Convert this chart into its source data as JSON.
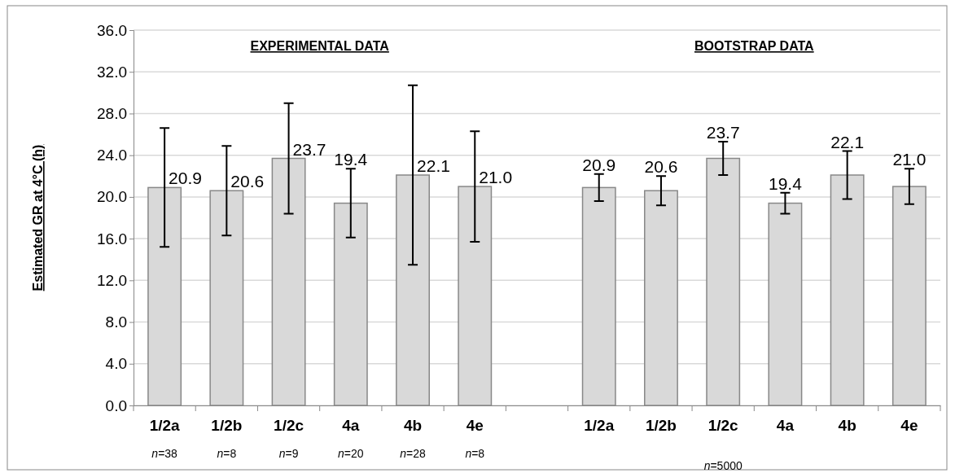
{
  "chart_data": {
    "type": "bar",
    "ylabel": "Estimated GR at 4°C (h)",
    "categories": [
      "1/2a",
      "1/2b",
      "1/2c",
      "4a",
      "4b",
      "4e",
      null,
      "1/2a",
      "1/2b",
      "1/2c",
      "4a",
      "4b",
      "4e"
    ],
    "values": [
      20.9,
      20.6,
      23.7,
      19.4,
      22.1,
      21.0,
      null,
      20.9,
      20.6,
      23.7,
      19.4,
      22.1,
      21.0
    ],
    "errors": [
      5.7,
      4.3,
      5.3,
      3.3,
      8.6,
      5.3,
      null,
      1.3,
      1.4,
      1.6,
      1.0,
      2.3,
      1.7
    ],
    "value_labels": [
      "20.9",
      "20.6",
      "23.7",
      "19.4",
      "22.1",
      "21.0",
      null,
      "20.9",
      "20.6",
      "23.7",
      "19.4",
      "22.1",
      "21.0"
    ],
    "color": "#d9d9d9",
    "ylim": [
      0,
      36
    ],
    "yticks": [
      {
        "value": 0,
        "label": "0.0"
      },
      {
        "value": 4,
        "label": "4.0"
      },
      {
        "value": 8,
        "label": "8.0"
      },
      {
        "value": 12,
        "label": "12.0"
      },
      {
        "value": 16,
        "label": "16.0"
      },
      {
        "value": 20,
        "label": "20.0"
      },
      {
        "value": 24,
        "label": "24.0"
      },
      {
        "value": 28,
        "label": "28.0"
      },
      {
        "value": 32,
        "label": "32.0"
      },
      {
        "value": 36,
        "label": "36.0"
      }
    ],
    "grid": "y",
    "annotations": [
      "EXPERIMENTAL DATA",
      "BOOTSTRAP DATA",
      "n=38",
      "n=8",
      "n=9",
      "n=20",
      "n=28",
      "n=8",
      "n=5000"
    ]
  }
}
